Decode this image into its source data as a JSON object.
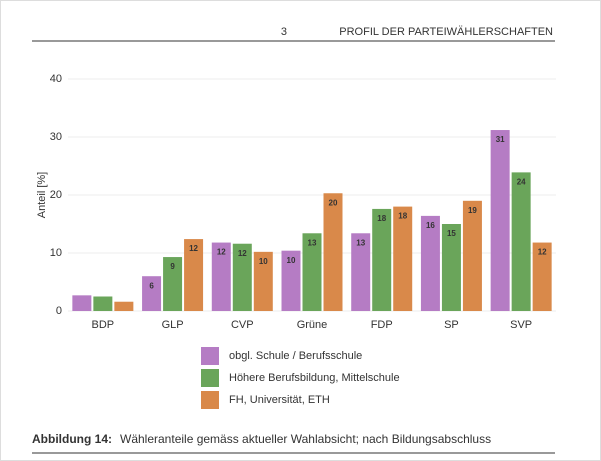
{
  "header": {
    "number": "3",
    "title": "PROFIL DER PARTEIWÄHLERSCHAFTEN"
  },
  "chart_data": {
    "type": "bar",
    "ylabel": "Anteil [%]",
    "categories": [
      "BDP",
      "GLP",
      "CVP",
      "Grüne",
      "FDP",
      "SP",
      "SVP"
    ],
    "series": [
      {
        "name": "obgl. Schule / Berufsschule",
        "color": "#b57cc4",
        "values": [
          2.7,
          6.0,
          11.8,
          10.4,
          13.4,
          16.4,
          31.2
        ],
        "value_labels": [
          null,
          "6",
          "12",
          "10",
          "13",
          "16",
          "31"
        ]
      },
      {
        "name": "Höhere Berufsbildung, Mittelschule",
        "color": "#6aa55a",
        "values": [
          2.5,
          9.3,
          11.6,
          13.4,
          17.6,
          15.0,
          23.9
        ],
        "value_labels": [
          null,
          "9",
          "12",
          "13",
          "18",
          "15",
          "24"
        ]
      },
      {
        "name": "FH, Universität, ETH",
        "color": "#d9894a",
        "values": [
          1.6,
          12.4,
          10.2,
          20.3,
          18.0,
          19.0,
          11.8
        ],
        "value_labels": [
          null,
          "12",
          "10",
          "20",
          "18",
          "19",
          "12"
        ]
      }
    ],
    "ylim": [
      0,
      40
    ],
    "yticks": [
      0,
      10,
      20,
      30,
      40
    ],
    "grid": true,
    "legend": "bottom"
  },
  "caption": {
    "label": "Abbildung 14:",
    "text": "Wähleranteile gemäss aktueller Wahlabsicht; nach Bildungsabschluss"
  }
}
